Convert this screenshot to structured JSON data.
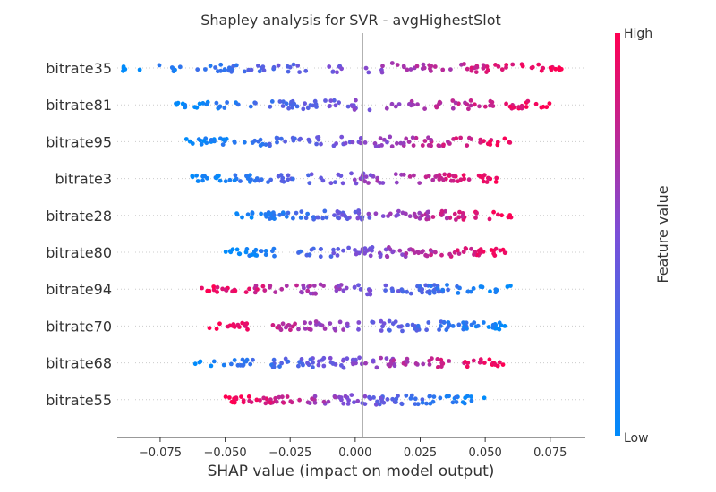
{
  "chart_data": {
    "type": "scatter",
    "title": "Shapley analysis for SVR - avgHighestSlot",
    "xlabel": "SHAP value (impact on model output)",
    "xlim": [
      -0.0915,
      0.0885
    ],
    "xticks": [
      -0.075,
      -0.05,
      -0.025,
      0.0,
      0.025,
      0.05,
      0.075
    ],
    "xtick_labels": [
      "−0.075",
      "−0.050",
      "−0.025",
      "0.000",
      "0.025",
      "0.050",
      "0.075"
    ],
    "features": [
      {
        "name": "bitrate35",
        "min": -0.09,
        "max": 0.08,
        "direction": 1
      },
      {
        "name": "bitrate81",
        "min": -0.07,
        "max": 0.075,
        "direction": 1
      },
      {
        "name": "bitrate95",
        "min": -0.065,
        "max": 0.063,
        "direction": 1
      },
      {
        "name": "bitrate3",
        "min": -0.063,
        "max": 0.058,
        "direction": 1
      },
      {
        "name": "bitrate28",
        "min": -0.046,
        "max": 0.06,
        "direction": 1
      },
      {
        "name": "bitrate80",
        "min": -0.05,
        "max": 0.06,
        "direction": 1
      },
      {
        "name": "bitrate94",
        "min": -0.06,
        "max": 0.06,
        "direction": -1
      },
      {
        "name": "bitrate70",
        "min": -0.057,
        "max": 0.058,
        "direction": -1
      },
      {
        "name": "bitrate68",
        "min": -0.062,
        "max": 0.058,
        "direction": 1
      },
      {
        "name": "bitrate55",
        "min": -0.05,
        "max": 0.05,
        "direction": -1
      }
    ],
    "colorbar": {
      "label": "Feature value",
      "high_label": "High",
      "low_label": "Low",
      "high_color": "#ff0052",
      "low_color": "#008bfb"
    },
    "grid": false,
    "zero_line": true
  }
}
